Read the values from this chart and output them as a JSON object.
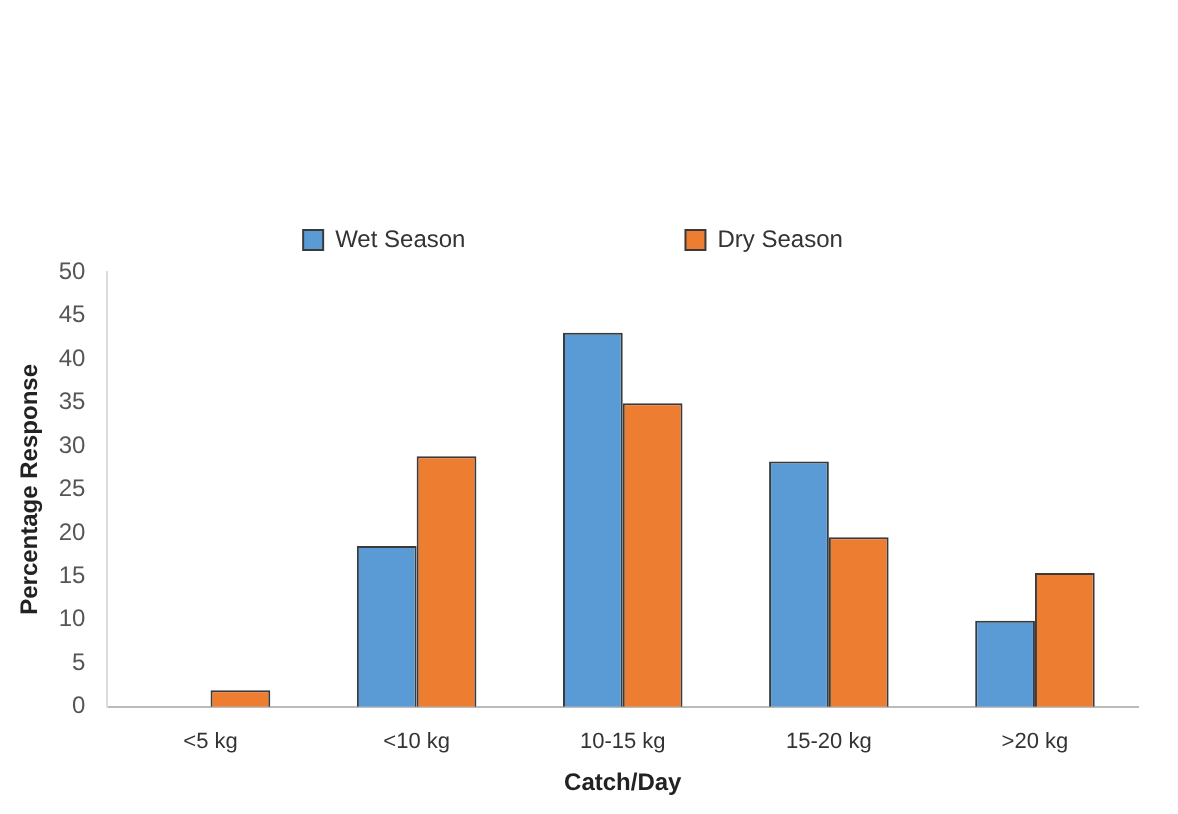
{
  "chart_data": {
    "type": "bar",
    "xlabel": "Catch/Day",
    "ylabel": "Percentage Response",
    "categories": [
      "<5 kg",
      "<10 kg",
      "10-15 kg",
      "15-20 kg",
      ">20 kg"
    ],
    "series": [
      {
        "name": "Wet Season",
        "color": "#5b9bd5",
        "values": [
          0,
          18.5,
          43,
          28.2,
          9.9
        ]
      },
      {
        "name": "Dry Season",
        "color": "#ed7d31",
        "values": [
          1.9,
          28.8,
          34.9,
          19.5,
          15.4
        ]
      }
    ],
    "ylim": [
      0,
      50
    ],
    "yticks": [
      0,
      5,
      10,
      15,
      20,
      25,
      30,
      35,
      40,
      45,
      50
    ],
    "grid": false,
    "legend": "top"
  }
}
